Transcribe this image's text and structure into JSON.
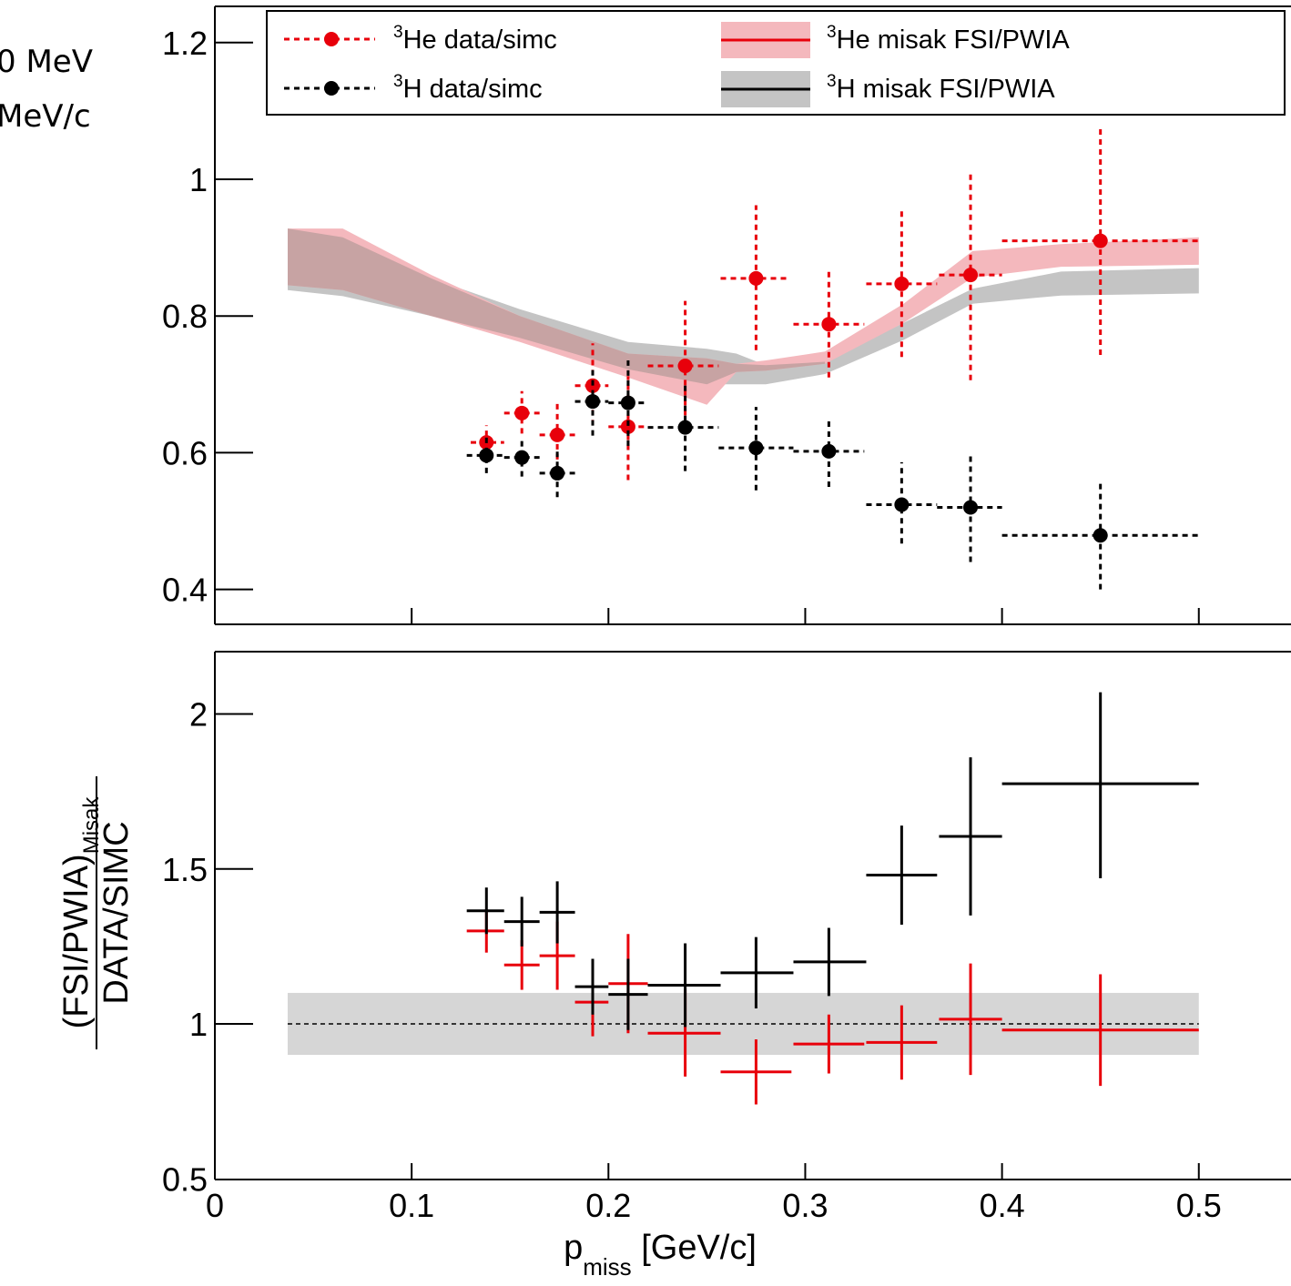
{
  "header": {
    "cut_line_1": "0 MeV",
    "cut_line_2": "MeV/c"
  },
  "colors": {
    "he3": "#e8000b",
    "h3": "#000000",
    "he3_band": "#f4b8bd",
    "h3_band": "#c4c4c4",
    "overlap_band": "#c7a3a3",
    "ref_band": "#d6d6d6"
  },
  "chart_data": [
    {
      "type": "scatter",
      "ylim": [
        0.35,
        1.25
      ],
      "xlim": [
        0,
        0.55
      ],
      "yticks": [
        "0.4",
        "0.6",
        "0.8",
        "1",
        "1.2"
      ],
      "ytick_values": [
        0.4,
        0.6,
        0.8,
        1.0,
        1.2
      ],
      "xtick_values": [
        0.1,
        0.2,
        0.3,
        0.4,
        0.5
      ],
      "legend": {
        "position": "top",
        "he3_data": "He data/simc",
        "h3_data": "H data/simc",
        "he3_theory": "He misak FSI/PWIA",
        "h3_theory": "H misak FSI/PWIA",
        "superscript": "3"
      },
      "series": [
        {
          "name": "3He data/simc",
          "points": [
            {
              "x": 0.138,
              "y": 0.615,
              "xlo": 0.13,
              "xhi": 0.147,
              "ylo": 0.595,
              "yhi": 0.64
            },
            {
              "x": 0.156,
              "y": 0.658,
              "xlo": 0.147,
              "xhi": 0.165,
              "ylo": 0.628,
              "yhi": 0.69
            },
            {
              "x": 0.174,
              "y": 0.626,
              "xlo": 0.165,
              "xhi": 0.183,
              "ylo": 0.59,
              "yhi": 0.672
            },
            {
              "x": 0.192,
              "y": 0.698,
              "xlo": 0.183,
              "xhi": 0.2,
              "ylo": 0.64,
              "yhi": 0.76
            },
            {
              "x": 0.21,
              "y": 0.638,
              "xlo": 0.2,
              "xhi": 0.22,
              "ylo": 0.56,
              "yhi": 0.712
            },
            {
              "x": 0.239,
              "y": 0.727,
              "xlo": 0.22,
              "xhi": 0.256,
              "ylo": 0.64,
              "yhi": 0.822
            },
            {
              "x": 0.275,
              "y": 0.855,
              "xlo": 0.257,
              "xhi": 0.292,
              "ylo": 0.75,
              "yhi": 0.962
            },
            {
              "x": 0.312,
              "y": 0.788,
              "xlo": 0.294,
              "xhi": 0.33,
              "ylo": 0.71,
              "yhi": 0.866
            },
            {
              "x": 0.349,
              "y": 0.847,
              "xlo": 0.331,
              "xhi": 0.367,
              "ylo": 0.74,
              "yhi": 0.955
            },
            {
              "x": 0.384,
              "y": 0.86,
              "xlo": 0.368,
              "xhi": 0.4,
              "ylo": 0.706,
              "yhi": 1.01
            },
            {
              "x": 0.45,
              "y": 0.91,
              "xlo": 0.4,
              "xhi": 0.5,
              "ylo": 0.743,
              "yhi": 1.077
            }
          ]
        },
        {
          "name": "3H data/simc",
          "points": [
            {
              "x": 0.138,
              "y": 0.596,
              "xlo": 0.128,
              "xhi": 0.147,
              "ylo": 0.57,
              "yhi": 0.622
            },
            {
              "x": 0.156,
              "y": 0.593,
              "xlo": 0.147,
              "xhi": 0.165,
              "ylo": 0.565,
              "yhi": 0.622
            },
            {
              "x": 0.174,
              "y": 0.57,
              "xlo": 0.165,
              "xhi": 0.183,
              "ylo": 0.535,
              "yhi": 0.605
            },
            {
              "x": 0.192,
              "y": 0.675,
              "xlo": 0.183,
              "xhi": 0.2,
              "ylo": 0.625,
              "yhi": 0.725
            },
            {
              "x": 0.21,
              "y": 0.673,
              "xlo": 0.2,
              "xhi": 0.22,
              "ylo": 0.61,
              "yhi": 0.735
            },
            {
              "x": 0.239,
              "y": 0.637,
              "xlo": 0.22,
              "xhi": 0.256,
              "ylo": 0.573,
              "yhi": 0.7
            },
            {
              "x": 0.275,
              "y": 0.607,
              "xlo": 0.256,
              "xhi": 0.294,
              "ylo": 0.545,
              "yhi": 0.667
            },
            {
              "x": 0.312,
              "y": 0.602,
              "xlo": 0.294,
              "xhi": 0.33,
              "ylo": 0.55,
              "yhi": 0.652
            },
            {
              "x": 0.349,
              "y": 0.524,
              "xlo": 0.331,
              "xhi": 0.367,
              "ylo": 0.467,
              "yhi": 0.586
            },
            {
              "x": 0.384,
              "y": 0.52,
              "xlo": 0.367,
              "xhi": 0.4,
              "ylo": 0.44,
              "yhi": 0.6
            },
            {
              "x": 0.45,
              "y": 0.479,
              "xlo": 0.4,
              "xhi": 0.5,
              "ylo": 0.4,
              "yhi": 0.558
            }
          ]
        }
      ],
      "bands": [
        {
          "name": "3H misak FSI/PWIA",
          "x": [
            0.037,
            0.065,
            0.11,
            0.155,
            0.21,
            0.25,
            0.265,
            0.28,
            0.31,
            0.35,
            0.385,
            0.43,
            0.5
          ],
          "lo": [
            0.838,
            0.829,
            0.8,
            0.768,
            0.722,
            0.7,
            0.7,
            0.7,
            0.715,
            0.765,
            0.818,
            0.83,
            0.833
          ],
          "hi": [
            0.928,
            0.915,
            0.855,
            0.81,
            0.762,
            0.752,
            0.745,
            0.728,
            0.733,
            0.79,
            0.84,
            0.865,
            0.87
          ]
        },
        {
          "name": "3He misak FSI/PWIA",
          "x": [
            0.037,
            0.065,
            0.11,
            0.155,
            0.21,
            0.25,
            0.265,
            0.28,
            0.31,
            0.35,
            0.385,
            0.43,
            0.5
          ],
          "lo": [
            0.845,
            0.838,
            0.8,
            0.762,
            0.71,
            0.67,
            0.718,
            0.72,
            0.73,
            0.79,
            0.856,
            0.872,
            0.875
          ],
          "hi": [
            0.928,
            0.928,
            0.86,
            0.8,
            0.745,
            0.738,
            0.73,
            0.735,
            0.748,
            0.818,
            0.895,
            0.905,
            0.915
          ]
        }
      ]
    },
    {
      "type": "scatter",
      "ylim": [
        0.5,
        2.2
      ],
      "xlim": [
        0,
        0.55
      ],
      "yticks": [
        "0.5",
        "1",
        "1.5",
        "2"
      ],
      "ytick_values": [
        0.5,
        1.0,
        1.5,
        2.0
      ],
      "xticks": [
        "0",
        "0.1",
        "0.2",
        "0.3",
        "0.4",
        "0.5"
      ],
      "xtick_values": [
        0,
        0.1,
        0.2,
        0.3,
        0.4,
        0.5
      ],
      "xlabel": "p",
      "xlabel_sub": "miss",
      "xlabel_unit": " [GeV/c]",
      "ylabel_numerator": "(FSI/PWIA)",
      "ylabel_numerator_sub": "Misak",
      "ylabel_denominator": "DATA/SIMC",
      "reference": {
        "y": 1.0,
        "band": [
          0.9,
          1.1
        ],
        "xrange": [
          0.037,
          0.5
        ]
      },
      "series": [
        {
          "name": "3He",
          "points": [
            {
              "x": 0.138,
              "y": 1.3,
              "xlo": 0.128,
              "xhi": 0.147,
              "ylo": 1.23,
              "yhi": 1.37
            },
            {
              "x": 0.156,
              "y": 1.19,
              "xlo": 0.147,
              "xhi": 0.165,
              "ylo": 1.11,
              "yhi": 1.27
            },
            {
              "x": 0.174,
              "y": 1.22,
              "xlo": 0.165,
              "xhi": 0.183,
              "ylo": 1.11,
              "yhi": 1.33
            },
            {
              "x": 0.192,
              "y": 1.07,
              "xlo": 0.183,
              "xhi": 0.2,
              "ylo": 0.96,
              "yhi": 1.18
            },
            {
              "x": 0.21,
              "y": 1.13,
              "xlo": 0.2,
              "xhi": 0.22,
              "ylo": 0.97,
              "yhi": 1.29
            },
            {
              "x": 0.239,
              "y": 0.97,
              "xlo": 0.22,
              "xhi": 0.257,
              "ylo": 0.83,
              "yhi": 1.11
            },
            {
              "x": 0.275,
              "y": 0.845,
              "xlo": 0.257,
              "xhi": 0.293,
              "ylo": 0.74,
              "yhi": 0.95
            },
            {
              "x": 0.312,
              "y": 0.935,
              "xlo": 0.294,
              "xhi": 0.33,
              "ylo": 0.84,
              "yhi": 1.03
            },
            {
              "x": 0.349,
              "y": 0.94,
              "xlo": 0.331,
              "xhi": 0.367,
              "ylo": 0.82,
              "yhi": 1.06
            },
            {
              "x": 0.384,
              "y": 1.015,
              "xlo": 0.368,
              "xhi": 0.4,
              "ylo": 0.835,
              "yhi": 1.195
            },
            {
              "x": 0.45,
              "y": 0.98,
              "xlo": 0.4,
              "xhi": 0.5,
              "ylo": 0.8,
              "yhi": 1.16
            }
          ]
        },
        {
          "name": "3H",
          "points": [
            {
              "x": 0.138,
              "y": 1.365,
              "xlo": 0.128,
              "xhi": 0.147,
              "ylo": 1.29,
              "yhi": 1.44
            },
            {
              "x": 0.156,
              "y": 1.33,
              "xlo": 0.147,
              "xhi": 0.165,
              "ylo": 1.25,
              "yhi": 1.41
            },
            {
              "x": 0.174,
              "y": 1.36,
              "xlo": 0.165,
              "xhi": 0.183,
              "ylo": 1.26,
              "yhi": 1.46
            },
            {
              "x": 0.192,
              "y": 1.12,
              "xlo": 0.183,
              "xhi": 0.2,
              "ylo": 1.03,
              "yhi": 1.21
            },
            {
              "x": 0.21,
              "y": 1.095,
              "xlo": 0.2,
              "xhi": 0.22,
              "ylo": 0.98,
              "yhi": 1.21
            },
            {
              "x": 0.239,
              "y": 1.125,
              "xlo": 0.22,
              "xhi": 0.257,
              "ylo": 0.99,
              "yhi": 1.26
            },
            {
              "x": 0.275,
              "y": 1.165,
              "xlo": 0.257,
              "xhi": 0.294,
              "ylo": 1.05,
              "yhi": 1.28
            },
            {
              "x": 0.312,
              "y": 1.2,
              "xlo": 0.294,
              "xhi": 0.331,
              "ylo": 1.09,
              "yhi": 1.31
            },
            {
              "x": 0.349,
              "y": 1.48,
              "xlo": 0.331,
              "xhi": 0.367,
              "ylo": 1.32,
              "yhi": 1.64
            },
            {
              "x": 0.384,
              "y": 1.605,
              "xlo": 0.368,
              "xhi": 0.4,
              "ylo": 1.35,
              "yhi": 1.86
            },
            {
              "x": 0.45,
              "y": 1.775,
              "xlo": 0.4,
              "xhi": 0.5,
              "ylo": 1.47,
              "yhi": 2.07
            }
          ]
        }
      ]
    }
  ]
}
